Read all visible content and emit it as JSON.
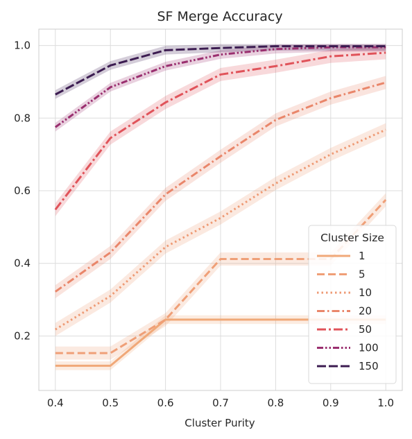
{
  "chart_data": {
    "type": "line",
    "title": "SF Merge Accuracy",
    "xlabel": "Cluster Purity",
    "ylabel": "",
    "x": [
      0.4,
      0.5,
      0.6,
      0.7,
      0.8,
      0.9,
      1.0
    ],
    "xticks": [
      "0.4",
      "0.5",
      "0.6",
      "0.7",
      "0.8",
      "0.9",
      "1.0"
    ],
    "yticks": [
      "0.2",
      "0.4",
      "0.6",
      "0.8",
      "1.0"
    ],
    "xlim": [
      0.37,
      1.03
    ],
    "ylim": [
      0.05,
      1.045
    ],
    "grid": true,
    "legend": {
      "title": "Cluster Size",
      "placement": "lower-right"
    },
    "series": [
      {
        "name": "1",
        "color": "#f0a878",
        "dash": "solid",
        "values": [
          0.118,
          0.118,
          0.245,
          0.245,
          0.245,
          0.245,
          0.245
        ],
        "band": 0.012
      },
      {
        "name": "5",
        "color": "#ef9f77",
        "dash": "dashed",
        "values": [
          0.153,
          0.153,
          0.245,
          0.412,
          0.412,
          0.412,
          0.575
        ],
        "band": 0.018
      },
      {
        "name": "10",
        "color": "#ee9a74",
        "dash": "dotted",
        "values": [
          0.218,
          0.31,
          0.445,
          0.525,
          0.62,
          0.7,
          0.768
        ],
        "band": 0.018
      },
      {
        "name": "20",
        "color": "#e9866a",
        "dash": "dashdot",
        "values": [
          0.322,
          0.43,
          0.59,
          0.695,
          0.795,
          0.855,
          0.898
        ],
        "band": 0.018
      },
      {
        "name": "50",
        "color": "#e0535a",
        "dash": "dashdot2",
        "values": [
          0.548,
          0.745,
          0.843,
          0.92,
          0.943,
          0.97,
          0.98
        ],
        "band": 0.018
      },
      {
        "name": "100",
        "color": "#9a2f6f",
        "dash": "dashdotdot",
        "values": [
          0.775,
          0.885,
          0.943,
          0.975,
          0.99,
          0.995,
          0.995
        ],
        "band": 0.012
      },
      {
        "name": "150",
        "color": "#3c1c51",
        "dash": "longdash",
        "values": [
          0.865,
          0.945,
          0.987,
          0.993,
          0.998,
          0.998,
          0.998
        ],
        "band": 0.012
      }
    ]
  }
}
